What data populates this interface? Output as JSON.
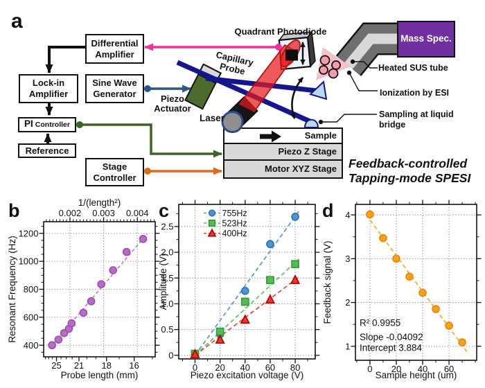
{
  "panel_a": {
    "label": "a",
    "boxes": {
      "differential_amplifier": [
        "Differential",
        "Amplifier"
      ],
      "lock_in_amplifier": [
        "Lock-in",
        "Amplifier"
      ],
      "sine_wave_generator": [
        "Sine Wave",
        "Generator"
      ],
      "pi_controller": [
        "PI",
        "Controller"
      ],
      "reference": [
        "Reference"
      ],
      "stage_controller": [
        "Stage",
        "Controller"
      ],
      "mass_spec": "Mass Spec.",
      "sample": "Sample",
      "piezo_z_stage": "Piezo Z Stage",
      "motor_xyz_stage": "Motor XYZ Stage"
    },
    "labels": {
      "quadrant_photodiode": "Quadrant Photodiode",
      "capillary_probe": [
        "Capillary",
        "Probe"
      ],
      "piezo_actuator": [
        "Piezo",
        "Actuator"
      ],
      "laser": "Laser",
      "heated_sus_tube": "Heated SUS tube",
      "ionization_by_esi": "Ionization by ESI",
      "sampling_at_liquid_bridge": [
        "Sampling at liquid",
        "bridge"
      ],
      "caption": [
        "Feedback-controlled",
        "Tapping-mode SPESI"
      ]
    },
    "colors": {
      "photodiode_signal_pink": "#f2309b",
      "excitation_blue": "#2b5582",
      "feedback_green": "#3d6322",
      "stage_orange": "#dd6b17",
      "capillary_navy": "#15158c",
      "laser_red": "#e41a1c",
      "mass_spec_purple": "#7030a0",
      "actuator_green": "#4d6b2d"
    }
  },
  "chart_data": [
    {
      "id": "b",
      "panel_label": "b",
      "type": "scatter",
      "x_axis": {
        "label": "Probe length (mm)",
        "lim": [
          0.00122,
          0.00453
        ],
        "ticks": [
          [
            0.0016,
            "25"
          ],
          [
            0.002268,
            "21"
          ],
          [
            0.003086,
            "18"
          ],
          [
            0.003906,
            "16"
          ]
        ],
        "minor": [
          0.0012755,
          0.0013717,
          0.0014793,
          0.0017361,
          0.0018904,
          0.0020661,
          0.0025,
          0.0027701,
          0.0034602,
          0.0044444
        ]
      },
      "x2_axis": {
        "label": "1/(length²)",
        "ticks": [
          [
            0.002,
            "0.002"
          ],
          [
            0.003,
            "0.003"
          ],
          [
            0.004,
            "0.004"
          ]
        ],
        "minor_step": 0.0001
      },
      "y_axis": {
        "label": "Resonant Frequency (Hz)",
        "lim": [
          317,
          1283
        ],
        "ticks": [
          [
            400,
            "400"
          ],
          [
            600,
            "600"
          ],
          [
            800,
            "800"
          ],
          [
            1000,
            "1000"
          ],
          [
            1200,
            "1200"
          ]
        ],
        "minor_step": 50
      },
      "series": [
        {
          "name": "resonant-frequency",
          "marker": "circle",
          "fill": "#b76cc6",
          "edge": "#9d50ad",
          "line": "#c77fd1",
          "x": [
            0.00147,
            0.00166,
            0.00183,
            0.00197,
            0.00205,
            0.0024,
            0.00263,
            0.00293,
            0.00328,
            0.00368,
            0.00417
          ],
          "y": [
            400,
            440,
            487,
            518,
            556,
            632,
            714,
            836,
            936,
            1067,
            1160
          ],
          "fit": {
            "x": [
              0.00139,
              0.00429
            ],
            "y": [
              377,
              1195
            ]
          }
        }
      ]
    },
    {
      "id": "c",
      "panel_label": "c",
      "type": "scatter",
      "x_axis": {
        "label": "Piezo excitation voltage (V)",
        "lim": [
          -13,
          96
        ],
        "ticks": [
          [
            0,
            "0"
          ],
          [
            20,
            "20"
          ],
          [
            40,
            "40"
          ],
          [
            60,
            "60"
          ],
          [
            80,
            "80"
          ]
        ],
        "minor_step": 10
      },
      "y_axis": {
        "label": "Amplitude (V)",
        "lim": [
          -0.07,
          2.93
        ],
        "ticks": [
          [
            0,
            "0"
          ],
          [
            0.5,
            "0.5"
          ],
          [
            1,
            "1.0"
          ],
          [
            1.5,
            "1.5"
          ],
          [
            2,
            "2.0"
          ],
          [
            2.5,
            "2.5"
          ]
        ],
        "minor_step": 0.25
      },
      "legend": true,
      "series": [
        {
          "name": "755Hz",
          "marker": "circle",
          "fill": "#4e96d1",
          "edge": "#2e75b6",
          "line": "#5b9bd5",
          "x": [
            0,
            20,
            40,
            60,
            80
          ],
          "y": [
            0.03,
            0.41,
            1.25,
            2.16,
            2.69
          ],
          "fit": {
            "x": [
              0,
              83
            ],
            "y": [
              0,
              2.8
            ]
          }
        },
        {
          "name": "523Hz",
          "marker": "square",
          "fill": "#57bb58",
          "edge": "#2f9e33",
          "line": "#67c468",
          "x": [
            0,
            20,
            40,
            60,
            80
          ],
          "y": [
            0.03,
            0.46,
            1.04,
            1.46,
            1.77
          ],
          "fit": {
            "x": [
              0,
              83
            ],
            "y": [
              0,
              1.87
            ]
          }
        },
        {
          "name": "400Hz",
          "marker": "triangle",
          "fill": "#e73a2b",
          "edge": "#b30000",
          "line": "#ef4b38",
          "x": [
            0,
            20,
            40,
            60,
            80
          ],
          "y": [
            0.02,
            0.3,
            0.69,
            1.08,
            1.46
          ],
          "fit": {
            "x": [
              0,
              83
            ],
            "y": [
              0,
              1.52
            ]
          }
        }
      ]
    },
    {
      "id": "d",
      "panel_label": "d",
      "type": "scatter",
      "x_axis": {
        "label": "Sample height (um)",
        "lim": [
          -11,
          81
        ],
        "ticks": [
          [
            0,
            "0"
          ],
          [
            20,
            "20"
          ],
          [
            40,
            "40"
          ],
          [
            60,
            "60"
          ]
        ],
        "minor_step": 10
      },
      "y_axis": {
        "label": "Feedback signal (V)",
        "lim": [
          0.68,
          4.24
        ],
        "ticks": [
          [
            1,
            "1"
          ],
          [
            2,
            "2"
          ],
          [
            3,
            "3"
          ],
          [
            4,
            "4"
          ]
        ],
        "minor_step": 0.5
      },
      "annotation": [
        "R² 0.9955",
        "Slope -0.04092",
        "Intercept 3.884"
      ],
      "series": [
        {
          "name": "feedback-signal",
          "marker": "circle",
          "fill": "#faa21e",
          "edge": "#e8890c",
          "line": "#fbab36",
          "x": [
            0,
            10,
            20,
            30,
            40,
            50,
            60,
            70
          ],
          "y": [
            4.01,
            3.47,
            3.0,
            2.59,
            2.22,
            1.85,
            1.47,
            1.09
          ],
          "fit": {
            "x": [
              -3,
              74
            ],
            "y": [
              4.01,
              0.86
            ]
          }
        }
      ]
    }
  ]
}
